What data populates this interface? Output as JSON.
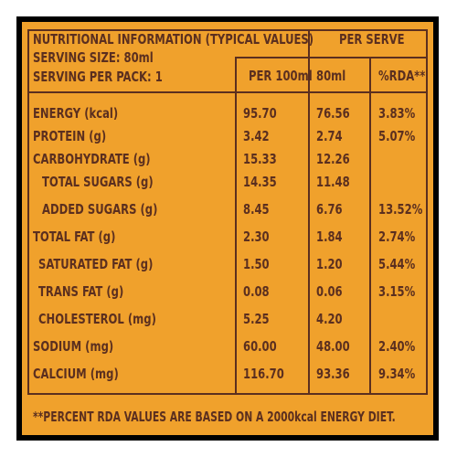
{
  "header": {
    "title": "NUTRITIONAL INFORMATION (TYPICAL VALUES)",
    "serving_size": "SERVING SIZE: 80ml",
    "serving_per_pack": "SERVING PER PACK: 1",
    "per_serve": "PER SERVE",
    "col_per100": "PER 100ml",
    "col_80ml": "80ml",
    "col_rda": "%RDA**"
  },
  "rows": [
    {
      "name": "ENERGY (kcal)",
      "per100": "95.70",
      "serve": "76.56",
      "rda": "3.83%"
    },
    {
      "name": "PROTEIN (g)",
      "per100": "3.42",
      "serve": "2.74",
      "rda": "5.07%"
    },
    {
      "name": "CARBOHYDRATE (g)",
      "per100": "15.33",
      "serve": "12.26",
      "rda": ""
    },
    {
      "name": "TOTAL SUGARS (g)",
      "per100": "14.35",
      "serve": "11.48",
      "rda": ""
    },
    {
      "name": "ADDED SUGARS (g)",
      "per100": "8.45",
      "serve": "6.76",
      "rda": "13.52%"
    },
    {
      "name": "TOTAL FAT (g)",
      "per100": "2.30",
      "serve": "1.84",
      "rda": "2.74%"
    },
    {
      "name": "SATURATED FAT (g)",
      "per100": "1.50",
      "serve": "1.20",
      "rda": "5.44%"
    },
    {
      "name": "TRANS FAT (g)",
      "per100": "0.08",
      "serve": "0.06",
      "rda": "3.15%"
    },
    {
      "name": "CHOLESTEROL (mg)",
      "per100": "5.25",
      "serve": "4.20",
      "rda": ""
    },
    {
      "name": "SODIUM (mg)",
      "per100": "60.00",
      "serve": "48.00",
      "rda": "2.40%"
    },
    {
      "name": "CALCIUM (mg)",
      "per100": "116.70",
      "serve": "93.36",
      "rda": "9.34%"
    }
  ],
  "footer": {
    "note": "**PERCENT RDA VALUES ARE BASED ON A 2000kcal ENERGY DIET."
  },
  "colors": {
    "label_background": "#f0a12c",
    "ink": "#5b2f1f",
    "frame": "#000000"
  }
}
